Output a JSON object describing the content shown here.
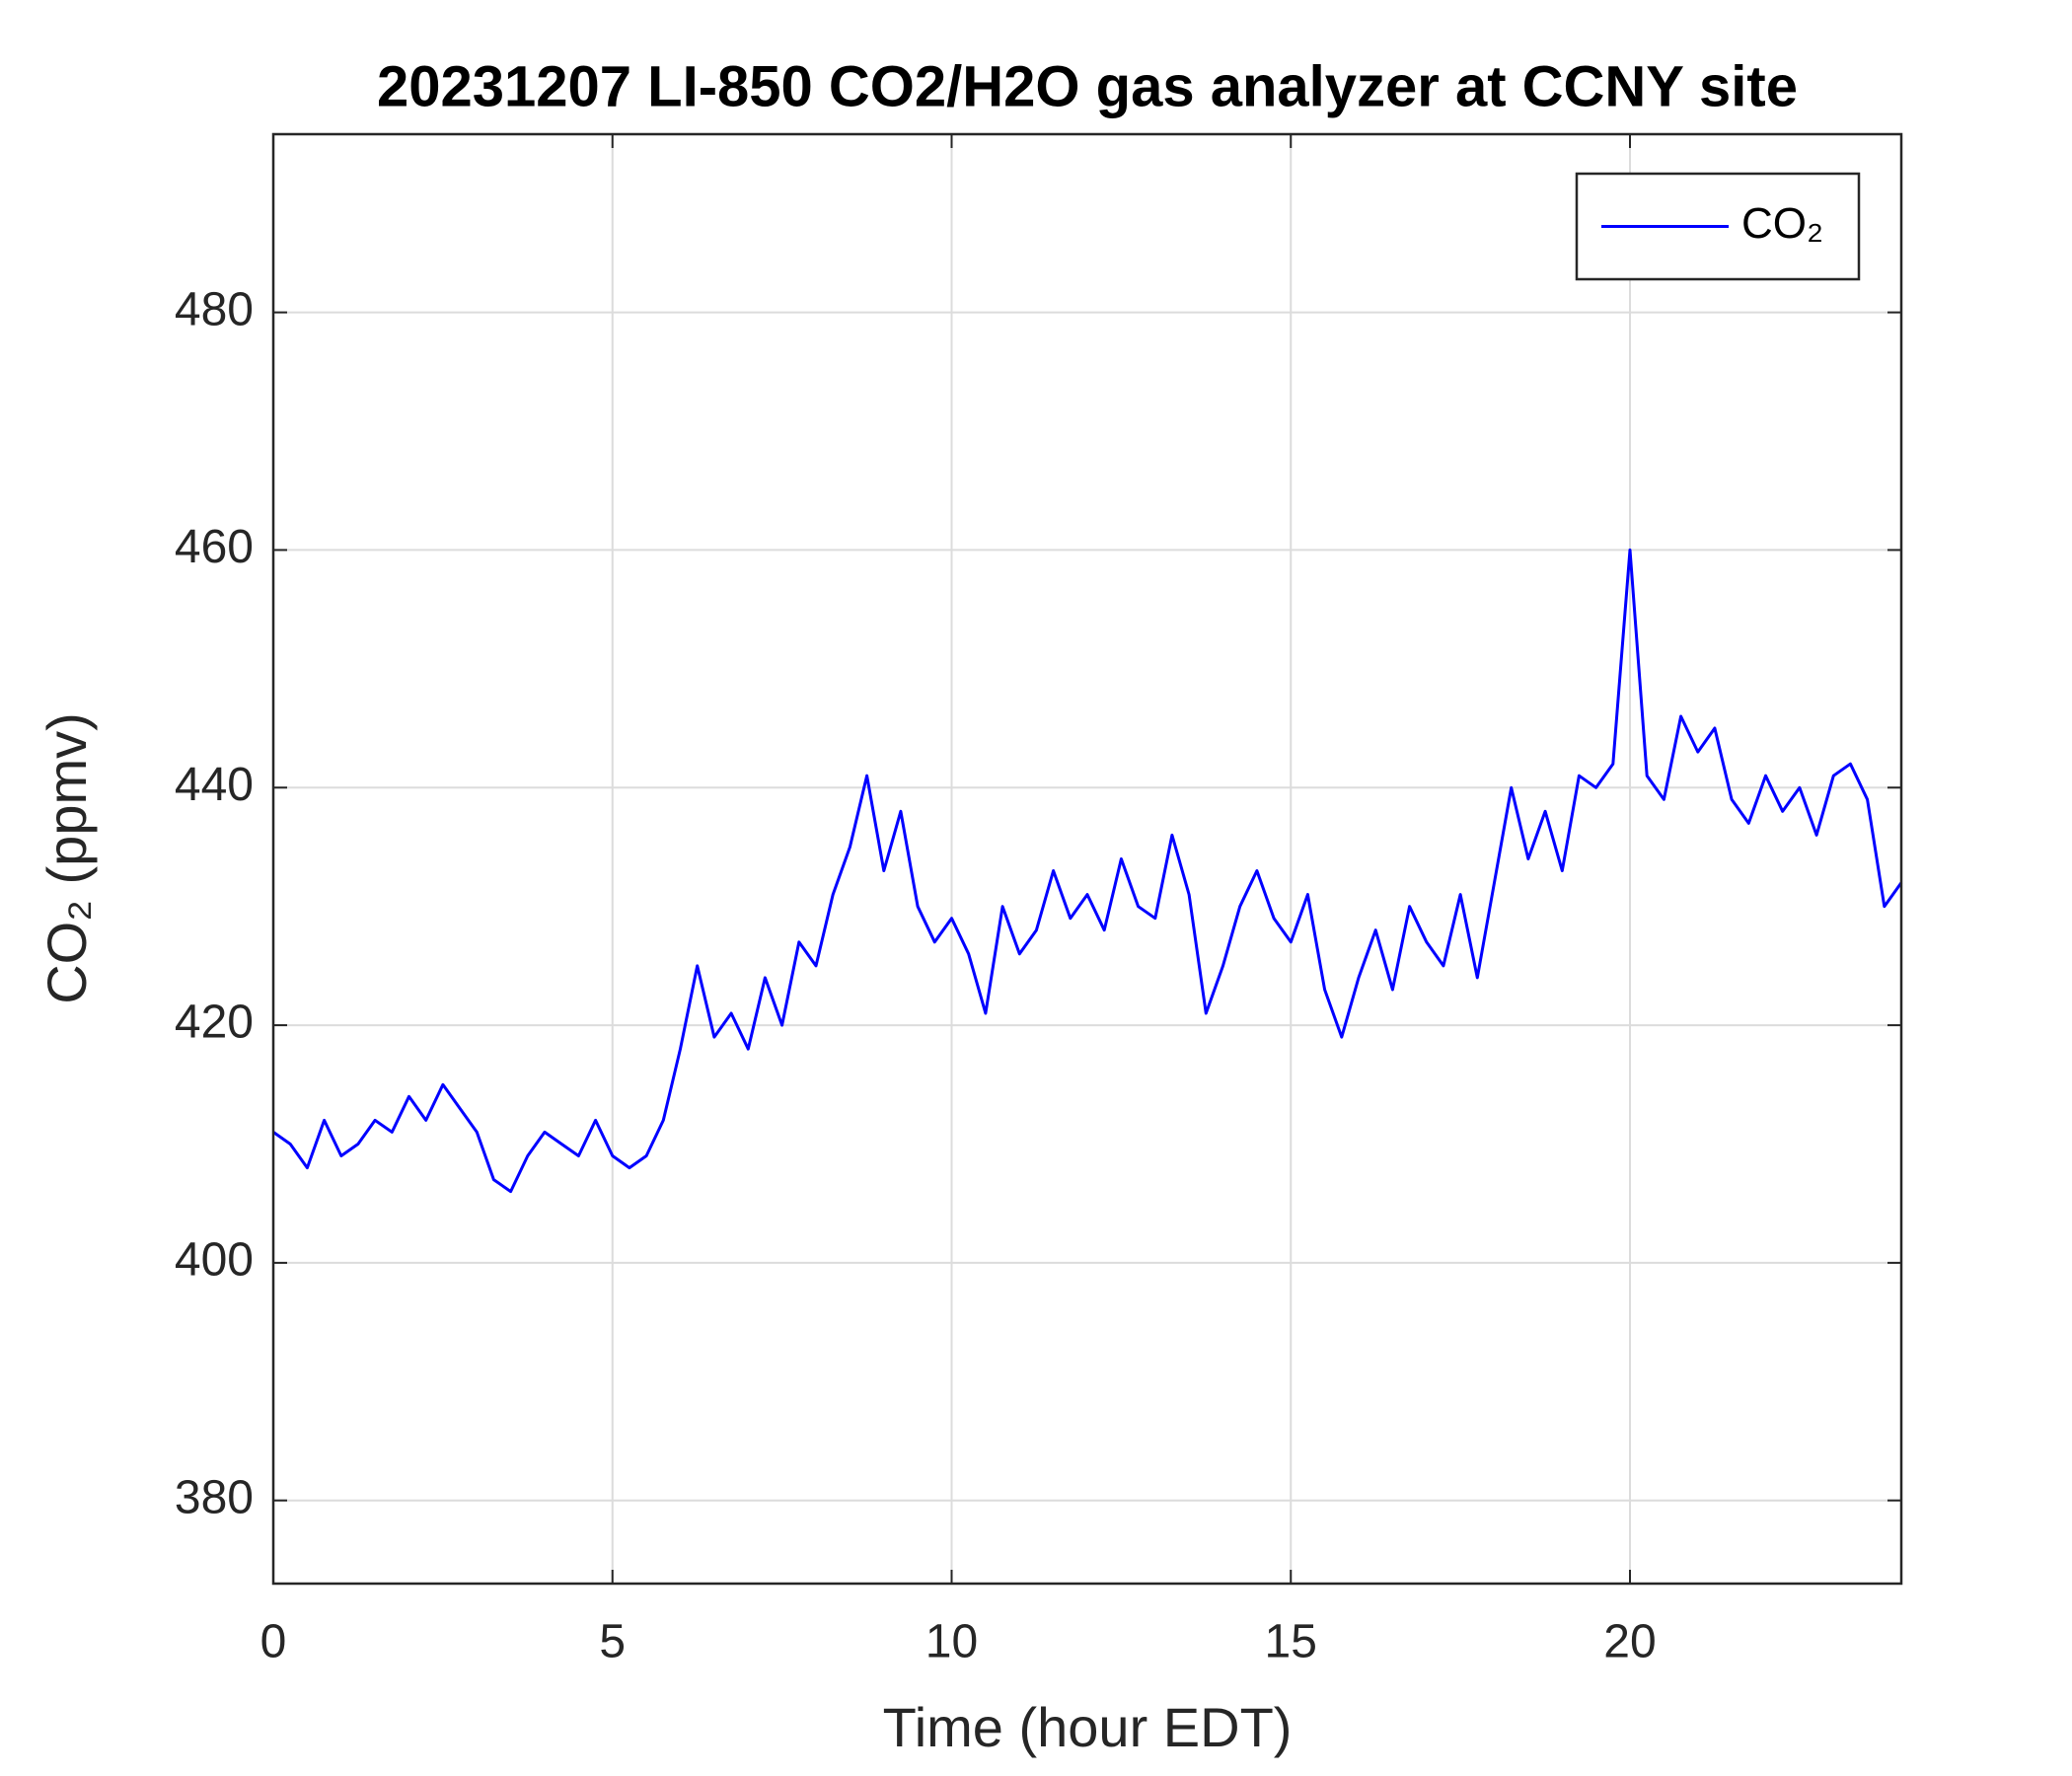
{
  "chart_data": {
    "type": "line",
    "title": "20231207 LI-850 CO2/H2O gas analyzer at CCNY site",
    "x_label": "Time (hour EDT)",
    "y_label": "CO₂ (ppmv)",
    "x": [
      0,
      0.25,
      0.5,
      0.75,
      1,
      1.25,
      1.5,
      1.75,
      2,
      2.25,
      2.5,
      2.75,
      3,
      3.25,
      3.5,
      3.75,
      4,
      4.25,
      4.5,
      4.75,
      5,
      5.25,
      5.5,
      5.75,
      6,
      6.25,
      6.5,
      6.75,
      7,
      7.25,
      7.5,
      7.75,
      8,
      8.25,
      8.5,
      8.75,
      9,
      9.25,
      9.5,
      9.75,
      10,
      10.25,
      10.5,
      10.75,
      11,
      11.25,
      11.5,
      11.75,
      12,
      12.25,
      12.5,
      12.75,
      13,
      13.25,
      13.5,
      13.75,
      14,
      14.25,
      14.5,
      14.75,
      15,
      15.25,
      15.5,
      15.75,
      16,
      16.25,
      16.5,
      16.75,
      17,
      17.25,
      17.5,
      17.75,
      18,
      18.25,
      18.5,
      18.75,
      19,
      19.25,
      19.5,
      19.75,
      20,
      20.25,
      20.5,
      20.75,
      21,
      21.25,
      21.5,
      21.75,
      22,
      22.25,
      22.5,
      22.75,
      23,
      23.25,
      23.5,
      23.75,
      24
    ],
    "series": [
      {
        "name": "CO₂",
        "color": "#0000ff",
        "values": [
          411,
          410,
          408,
          412,
          409,
          410,
          412,
          411,
          414,
          412,
          415,
          413,
          411,
          407,
          406,
          409,
          411,
          410,
          409,
          412,
          409,
          408,
          409,
          412,
          418,
          425,
          419,
          421,
          418,
          424,
          420,
          427,
          425,
          431,
          435,
          441,
          433,
          438,
          430,
          427,
          429,
          426,
          421,
          430,
          426,
          428,
          433,
          429,
          431,
          428,
          434,
          430,
          429,
          436,
          431,
          421,
          425,
          430,
          433,
          429,
          427,
          431,
          423,
          419,
          424,
          428,
          423,
          430,
          427,
          425,
          431,
          424,
          432,
          440,
          434,
          438,
          433,
          441,
          440,
          442,
          460,
          441,
          439,
          446,
          443,
          445,
          439,
          437,
          441,
          438,
          440,
          436,
          441,
          442,
          439,
          430,
          432
        ]
      }
    ],
    "xlim": [
      0,
      24
    ],
    "xticks": [
      0,
      5,
      10,
      15,
      20
    ],
    "ylim": [
      373,
      495
    ],
    "yticks": [
      380,
      400,
      420,
      440,
      460,
      480
    ],
    "grid": true,
    "legend": "upper right"
  }
}
